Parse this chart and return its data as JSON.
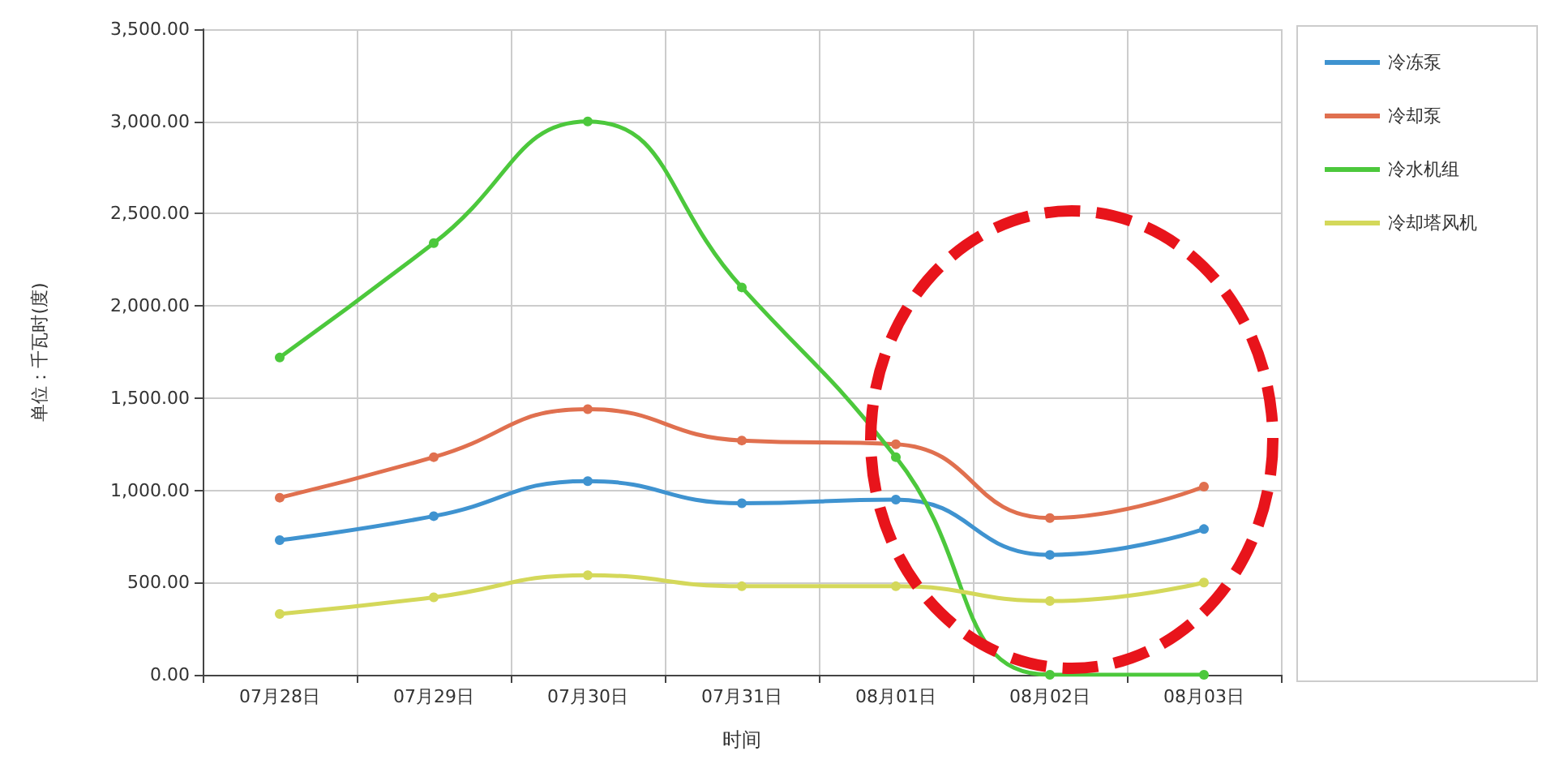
{
  "chart_data": {
    "type": "line",
    "xlabel": "时间",
    "ylabel": "单位：千瓦时(度)",
    "categories": [
      "07月28日",
      "07月29日",
      "07月30日",
      "07月31日",
      "08月01日",
      "08月02日",
      "08月03日"
    ],
    "series": [
      {
        "name": "冷冻泵",
        "color": "#3f93d0",
        "values": [
          730,
          860,
          1050,
          930,
          950,
          650,
          790
        ]
      },
      {
        "name": "冷却泵",
        "color": "#e0704f",
        "values": [
          960,
          1180,
          1440,
          1270,
          1250,
          850,
          1020
        ]
      },
      {
        "name": "冷水机组",
        "color": "#4cc83c",
        "values": [
          1720,
          2340,
          3000,
          2100,
          1180,
          0,
          0
        ]
      },
      {
        "name": "冷却塔风机",
        "color": "#d4d85a",
        "values": [
          330,
          420,
          540,
          480,
          480,
          400,
          500
        ]
      }
    ],
    "ylim": [
      0,
      3500
    ],
    "yticks": [
      {
        "value": 0,
        "label": "0.00"
      },
      {
        "value": 500,
        "label": "500.00"
      },
      {
        "value": 1000,
        "label": "1,000.00"
      },
      {
        "value": 1500,
        "label": "1,500.00"
      },
      {
        "value": 2000,
        "label": "2,000.00"
      },
      {
        "value": 2500,
        "label": "2,500.00"
      },
      {
        "value": 3000,
        "label": "3,000.00"
      },
      {
        "value": 3500,
        "label": "3,500.00"
      }
    ],
    "grid": true,
    "legend": "right",
    "marker": "circle",
    "line_style": "solid"
  }
}
